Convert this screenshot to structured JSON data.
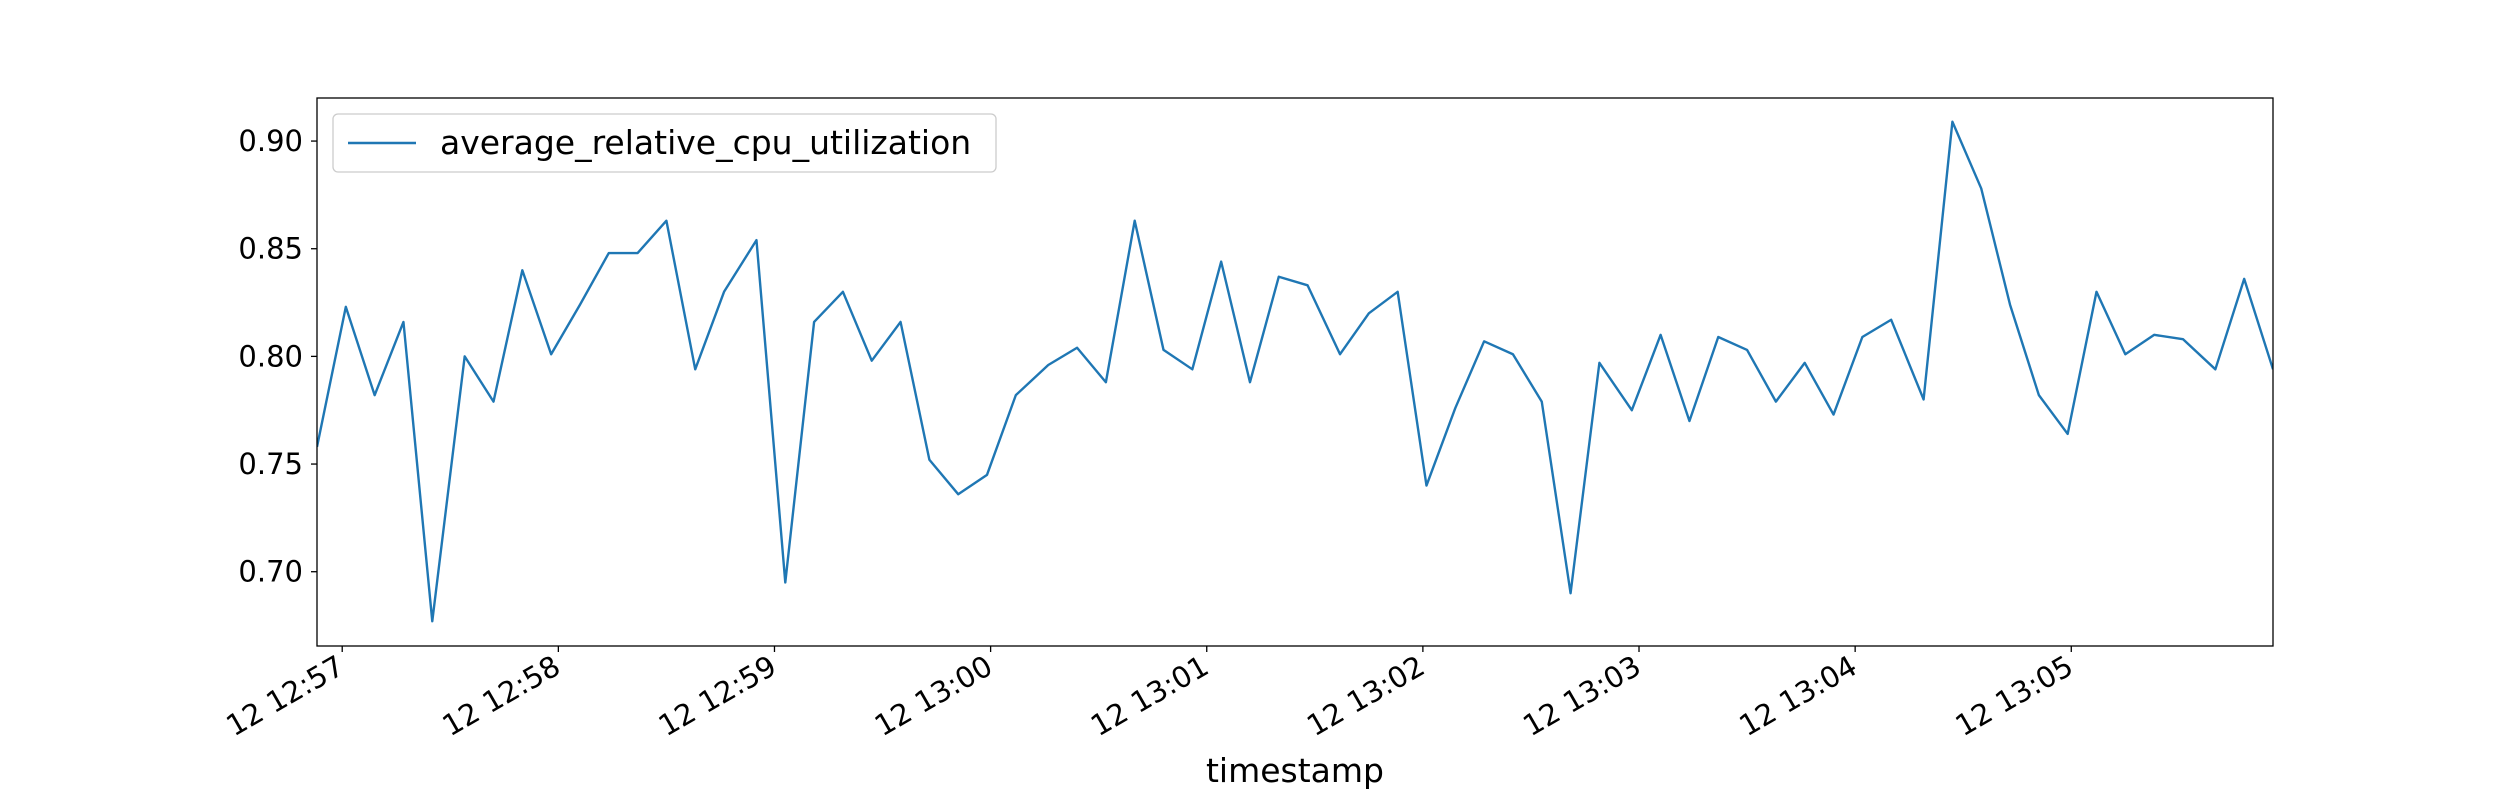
{
  "chart_data": {
    "type": "line",
    "x_label": "timestamp",
    "x": [
      "12 12:56:53",
      "12 12:57:01",
      "12 12:57:09",
      "12 12:57:17",
      "12 12:57:25",
      "12 12:57:34",
      "12 12:57:42",
      "12 12:57:50",
      "12 12:57:58",
      "12 12:58:06",
      "12 12:58:14",
      "12 12:58:22",
      "12 12:58:30",
      "12 12:58:38",
      "12 12:58:46",
      "12 12:58:55",
      "12 12:59:03",
      "12 12:59:11",
      "12 12:59:19",
      "12 12:59:27",
      "12 12:59:35",
      "12 12:59:43",
      "12 12:59:51",
      "12 12:59:59",
      "12 13:00:07",
      "12 13:00:16",
      "12 13:00:24",
      "12 13:00:32",
      "12 13:00:40",
      "12 13:00:48",
      "12 13:00:56",
      "12 13:01:04",
      "12 13:01:12",
      "12 13:01:20",
      "12 13:01:28",
      "12 13:01:37",
      "12 13:01:45",
      "12 13:01:53",
      "12 13:02:01",
      "12 13:02:09",
      "12 13:02:17",
      "12 13:02:25",
      "12 13:02:33",
      "12 13:02:41",
      "12 13:02:49",
      "12 13:02:58",
      "12 13:03:06",
      "12 13:03:14",
      "12 13:03:22",
      "12 13:03:30",
      "12 13:03:38",
      "12 13:03:46",
      "12 13:03:54",
      "12 13:04:02",
      "12 13:04:10",
      "12 13:04:19",
      "12 13:04:27",
      "12 13:04:35",
      "12 13:04:43",
      "12 13:04:51",
      "12 13:04:59",
      "12 13:05:07",
      "12 13:05:15",
      "12 13:05:23",
      "12 13:05:31",
      "12 13:05:40",
      "12 13:05:48",
      "12 13:05:56"
    ],
    "series": [
      {
        "name": "average_relative_cpu_utilization",
        "color": "#1f77b4",
        "values": [
          0.758,
          0.823,
          0.782,
          0.816,
          0.677,
          0.8,
          0.779,
          0.84,
          0.801,
          0.824,
          0.848,
          0.848,
          0.863,
          0.794,
          0.83,
          0.854,
          0.695,
          0.816,
          0.83,
          0.798,
          0.816,
          0.752,
          0.736,
          0.745,
          0.782,
          0.796,
          0.804,
          0.788,
          0.863,
          0.803,
          0.794,
          0.844,
          0.788,
          0.837,
          0.833,
          0.801,
          0.82,
          0.83,
          0.74,
          0.776,
          0.807,
          0.801,
          0.779,
          0.69,
          0.797,
          0.775,
          0.81,
          0.77,
          0.809,
          0.803,
          0.779,
          0.797,
          0.773,
          0.809,
          0.817,
          0.78,
          0.909,
          0.878,
          0.824,
          0.782,
          0.764,
          0.83,
          0.801,
          0.81,
          0.808,
          0.794,
          0.836,
          0.794
        ]
      }
    ],
    "xlim": [
      "12 12:56:53",
      "12 13:05:56"
    ],
    "xticks": [
      "12 12:57",
      "12 12:58",
      "12 12:59",
      "12 13:00",
      "12 13:01",
      "12 13:02",
      "12 13:03",
      "12 13:04",
      "12 13:05"
    ],
    "ylim": [
      0.6655,
      0.92
    ],
    "yticks": [
      {
        "value": 0.7,
        "label": "0.70"
      },
      {
        "value": 0.75,
        "label": "0.75"
      },
      {
        "value": 0.8,
        "label": "0.80"
      },
      {
        "value": 0.85,
        "label": "0.85"
      },
      {
        "value": 0.9,
        "label": "0.90"
      }
    ],
    "legend": "upper left",
    "grid": false
  }
}
